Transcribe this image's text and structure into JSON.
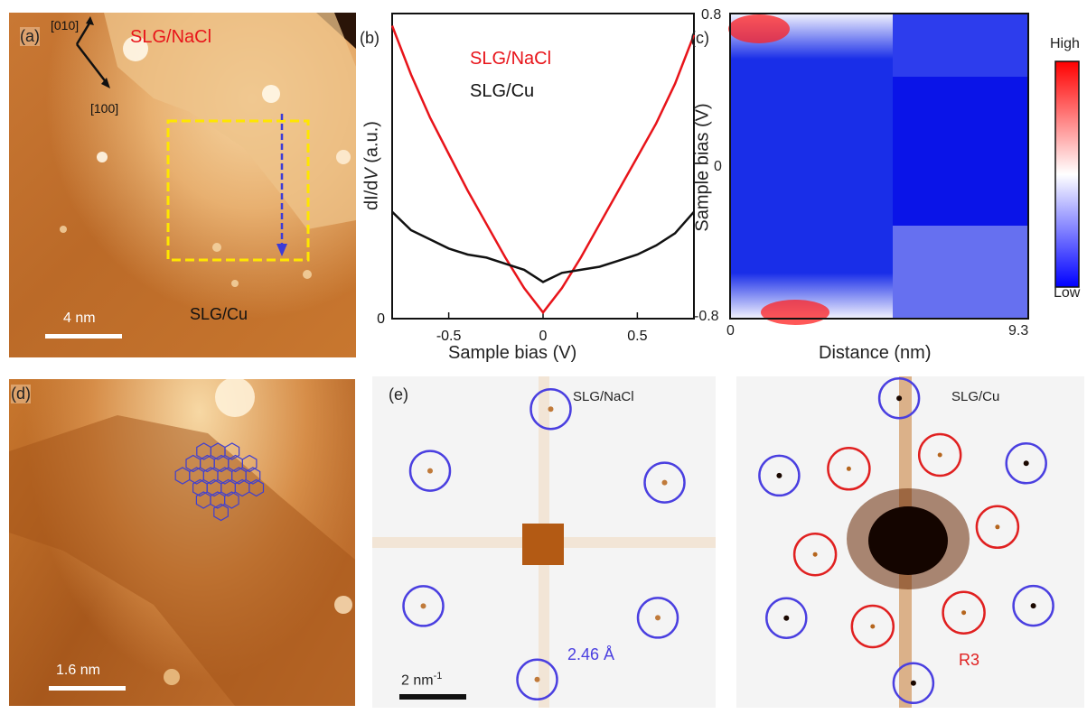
{
  "panel_a": {
    "label": "(a)",
    "dir1": "[010]",
    "dir2": "[100]",
    "region_top": "SLG/NaCl",
    "region_bottom": "SLG/Cu",
    "scale": "4 nm",
    "colors": {
      "region_top": "#e8141a",
      "box": "#ffe600",
      "arrow": "#3b3bd8"
    }
  },
  "panel_b": {
    "label": "(b)",
    "legend_red": "SLG/NaCl",
    "legend_black": "SLG/Cu"
  },
  "panel_c": {
    "label": "(c)",
    "ylabel": "Sample bias (V)",
    "xlabel": "Distance (nm)",
    "y_ticks": [
      "0.8",
      "0",
      "-0.8"
    ],
    "x_ticks": [
      "0",
      "9.3"
    ],
    "colorbar_high": "High",
    "colorbar_low": "Low"
  },
  "panel_d": {
    "label": "(d)",
    "scale": "1.6 nm"
  },
  "panel_e": {
    "label": "(e)",
    "left_title": "SLG/NaCl",
    "right_title": "SLG/Cu",
    "lattice": "2.46 Å",
    "scale_base": "2 nm",
    "scale_exp": "-1",
    "r3": "R3",
    "colors": {
      "blue_ring": "#4a3fe0",
      "red_ring": "#e02020"
    }
  },
  "chart_data": [
    {
      "type": "line",
      "title": "",
      "xlabel": "Sample bias (V)",
      "ylabel": "dI/dV (a.u.)",
      "xlim": [
        -0.8,
        0.8
      ],
      "ylim": [
        0,
        1
      ],
      "x_ticks": [
        "-0.5",
        "0",
        "0.5"
      ],
      "y_ticks": [
        "0"
      ],
      "series": [
        {
          "name": "SLG/NaCl",
          "color": "#e8141a",
          "x": [
            -0.8,
            -0.7,
            -0.6,
            -0.5,
            -0.4,
            -0.3,
            -0.2,
            -0.1,
            0.0,
            0.1,
            0.2,
            0.3,
            0.4,
            0.5,
            0.6,
            0.7,
            0.8
          ],
          "y": [
            0.96,
            0.8,
            0.66,
            0.54,
            0.42,
            0.31,
            0.2,
            0.1,
            0.02,
            0.1,
            0.2,
            0.31,
            0.42,
            0.53,
            0.64,
            0.77,
            0.93
          ]
        },
        {
          "name": "SLG/Cu",
          "color": "#111111",
          "x": [
            -0.8,
            -0.7,
            -0.6,
            -0.5,
            -0.4,
            -0.3,
            -0.2,
            -0.1,
            0.0,
            0.1,
            0.2,
            0.3,
            0.4,
            0.5,
            0.6,
            0.7,
            0.8
          ],
          "y": [
            0.35,
            0.29,
            0.26,
            0.23,
            0.21,
            0.2,
            0.18,
            0.16,
            0.12,
            0.15,
            0.16,
            0.17,
            0.19,
            0.21,
            0.24,
            0.28,
            0.35
          ]
        }
      ]
    },
    {
      "type": "heatmap",
      "xlabel": "Distance (nm)",
      "ylabel": "Sample bias (V)",
      "xlim": [
        0,
        9.3
      ],
      "ylim": [
        -0.8,
        0.8
      ],
      "colorbar": [
        "Low",
        "High"
      ],
      "regions": [
        {
          "name": "SLG/NaCl side",
          "x_range": [
            0,
            5.0
          ],
          "note_level_top": "high",
          "note_level_bottom": "high"
        },
        {
          "name": "SLG/Cu side",
          "x_range": [
            5.0,
            9.3
          ],
          "note_level_top": "low",
          "note_level_bottom": "medium"
        }
      ]
    }
  ]
}
